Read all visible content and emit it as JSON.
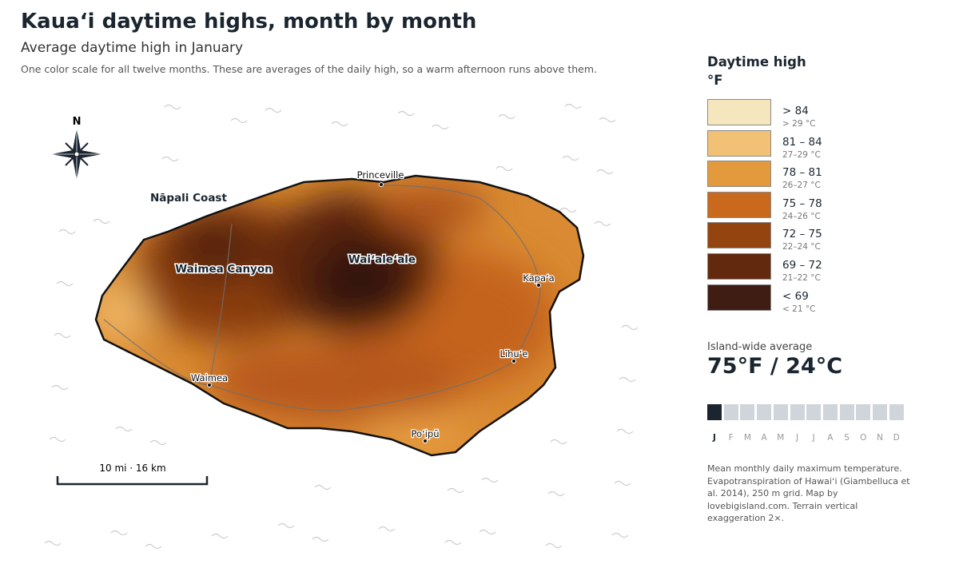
{
  "header": {
    "title": "Kauaʻi daytime highs, month by month",
    "subtitle": "Average daytime high in January",
    "description": "One color scale for all twelve months. These are averages of the daily high, so a warm afternoon runs above them."
  },
  "map": {
    "compass": "N",
    "regions": [
      "Nāpali Coast",
      "Waimea Canyon",
      "Waiʻaleʻale"
    ],
    "towns": [
      "Princeville",
      "Kapaʻa",
      "Līhuʻe",
      "Waimea",
      "Poʻipū"
    ],
    "scale": "10 mi · 16 km"
  },
  "legend": {
    "title": "Daytime high",
    "unit": "°F",
    "items": [
      {
        "label": "> 84",
        "sub": "> 29 °C",
        "color": "#f6e6bd"
      },
      {
        "label": "81 – 84",
        "sub": "27–29 °C",
        "color": "#f1c275"
      },
      {
        "label": "78 – 81",
        "sub": "26–27 °C",
        "color": "#e29a3d"
      },
      {
        "label": "75 – 78",
        "sub": "24–26 °C",
        "color": "#c8691d"
      },
      {
        "label": "72 – 75",
        "sub": "22–24 °C",
        "color": "#94440f"
      },
      {
        "label": "69 – 72",
        "sub": "21–22 °C",
        "color": "#63290e"
      },
      {
        "label": "< 69",
        "sub": "< 21 °C",
        "color": "#3f1d13"
      }
    ]
  },
  "average": {
    "label": "Island-wide average",
    "value": "75°F / 24°C"
  },
  "months": {
    "letters": [
      "J",
      "F",
      "M",
      "A",
      "M",
      "J",
      "J",
      "A",
      "S",
      "O",
      "N",
      "D"
    ],
    "active": 0
  },
  "source": "Mean monthly daily maximum temperature. Evapotranspiration of Hawaiʻi (Giambelluca et al. 2014), 250 m grid. Map by lovebigisland.com. Terrain vertical exaggeration 2×."
}
